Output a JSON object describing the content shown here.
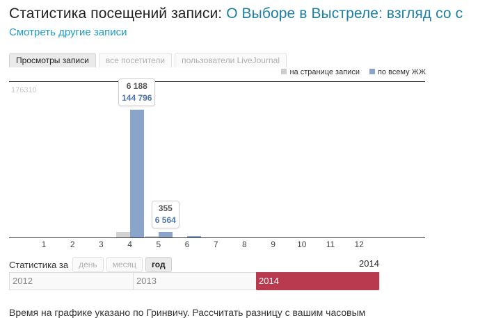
{
  "header": {
    "title_label": "Статистика посещений записи:",
    "post_title": "О Выборе в Выстреле: взгляд со с",
    "more_link": "Смотреть другие записи"
  },
  "tabs": [
    {
      "label": "Просмотры записи",
      "active": true
    },
    {
      "label": "все посетители",
      "active": false
    },
    {
      "label": "пользователи LiveJournal",
      "active": false
    }
  ],
  "legend": [
    {
      "label": "на странице записи",
      "color": "#cccccc"
    },
    {
      "label": "по всему ЖЖ",
      "color": "#8aa5c9"
    }
  ],
  "chart_data": {
    "type": "bar",
    "categories": [
      "1",
      "2",
      "3",
      "4",
      "5",
      "6",
      "7",
      "8",
      "9",
      "10",
      "11",
      "12"
    ],
    "series": [
      {
        "name": "на странице записи",
        "values": [
          0,
          0,
          0,
          6188,
          355,
          0,
          0,
          0,
          0,
          0,
          0,
          0
        ]
      },
      {
        "name": "по всему ЖЖ",
        "values": [
          0,
          0,
          0,
          144796,
          6564,
          1400,
          0,
          0,
          0,
          0,
          0,
          0
        ]
      }
    ],
    "ymax_label": "176310",
    "ylim": [
      0,
      176310
    ],
    "tooltips": [
      {
        "category": "4",
        "page": "6 188",
        "lj": "144 796"
      },
      {
        "category": "5",
        "page": "355",
        "lj": "6 564"
      }
    ]
  },
  "stats": {
    "label": "Статистика за",
    "periods": [
      {
        "label": "день",
        "active": false
      },
      {
        "label": "месяц",
        "active": false
      },
      {
        "label": "год",
        "active": true
      }
    ],
    "current_year": "2014",
    "years": [
      "2012",
      "2013",
      "2014"
    ],
    "selected_year": "2014"
  },
  "footnote": "Время на графике указано по Гринвичу. Рассчитать разницу с вашим часовым"
}
